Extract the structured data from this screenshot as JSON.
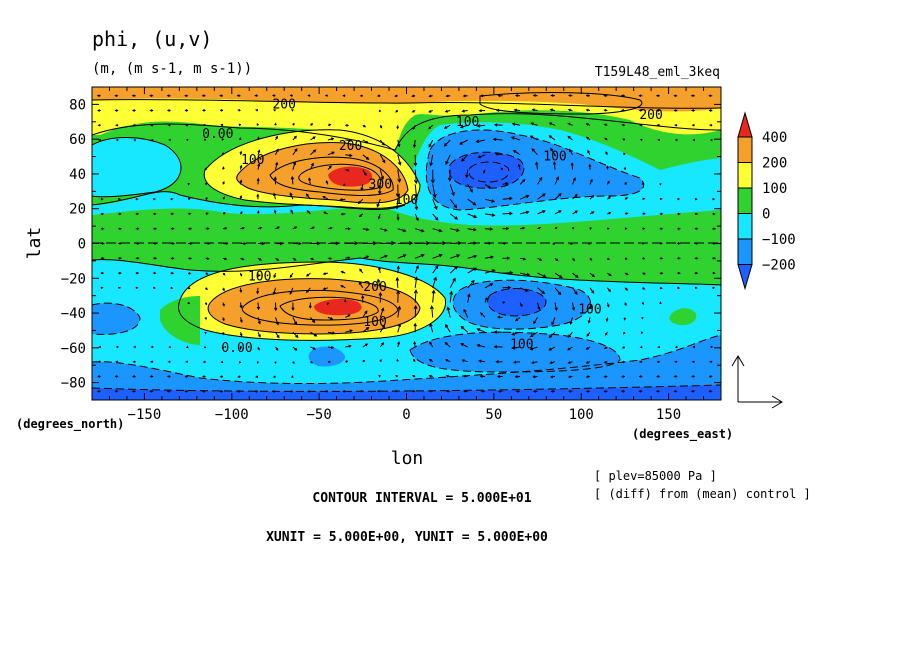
{
  "chart_data": {
    "type": "heatmap",
    "title": "phi, (u,v)",
    "units": "(m, (m s-1, m s-1))",
    "experiment": "T159L48_eml_3keq",
    "xlabel": "lon",
    "ylabel": "lat",
    "x_unit_label": "(degrees_east)",
    "y_unit_label": "(degrees_north)",
    "xlim": [
      -180,
      180
    ],
    "ylim": [
      -90,
      90
    ],
    "x_ticks": [
      -150,
      -100,
      -50,
      0,
      50,
      100,
      150
    ],
    "y_ticks": [
      80,
      60,
      40,
      20,
      0,
      -20,
      -40,
      -60,
      -80
    ],
    "colorbar": {
      "labels": [
        "400",
        "200",
        "100",
        "0",
        "-100",
        "-200"
      ],
      "colors": [
        "#e8281e",
        "#f5a02a",
        "#ffff35",
        "#2fd22e",
        "#18e8ff",
        "#1c96ff",
        "#1e5fff"
      ],
      "bands": [
        {
          "range": [
            -200,
            -99999
          ],
          "color": "#1c96ff"
        },
        {
          "range": [
            -100,
            -200
          ],
          "color": "#18e8ff"
        }
      ]
    },
    "contour_labels": [
      {
        "text": "200",
        "lon": -70,
        "lat": 80
      },
      {
        "text": "0.00",
        "lon": -108,
        "lat": 63
      },
      {
        "text": "100",
        "lon": -88,
        "lat": 48
      },
      {
        "text": "200",
        "lon": -32,
        "lat": 56
      },
      {
        "text": "300",
        "lon": -15,
        "lat": 34
      },
      {
        "text": "100",
        "lon": 35,
        "lat": 70
      },
      {
        "text": "200",
        "lon": 140,
        "lat": 74
      },
      {
        "text": "100",
        "lon": 85,
        "lat": 50
      },
      {
        "text": "100",
        "lon": 0,
        "lat": 25
      },
      {
        "text": "100",
        "lon": -84,
        "lat": -19
      },
      {
        "text": "200",
        "lon": -18,
        "lat": -25
      },
      {
        "text": "100",
        "lon": -18,
        "lat": -45
      },
      {
        "text": "0.00",
        "lon": -97,
        "lat": -60
      },
      {
        "text": "100",
        "lon": 105,
        "lat": -38
      },
      {
        "text": "100",
        "lon": 66,
        "lat": -58
      }
    ],
    "features": [
      {
        "label": "max",
        "lon": -35,
        "lat": 38,
        "value": 400
      },
      {
        "label": "max",
        "lon": -40,
        "lat": -36,
        "value": 400
      },
      {
        "label": "min",
        "lon": 50,
        "lat": 40,
        "value": -200
      },
      {
        "label": "min",
        "lon": 55,
        "lat": -35,
        "value": -200
      }
    ],
    "vector_scale": {
      "xunit": "5.000E+00",
      "yunit": "5.000E+00"
    }
  },
  "annotations": {
    "contour_interval": "CONTOUR INTERVAL = 5.000E+01",
    "vector_units": "XUNIT = 5.000E+00, YUNIT = 5.000E+00",
    "plev": "[ plev=85000 Pa ]",
    "diff_note": "[ (diff) from (mean) control ]"
  }
}
